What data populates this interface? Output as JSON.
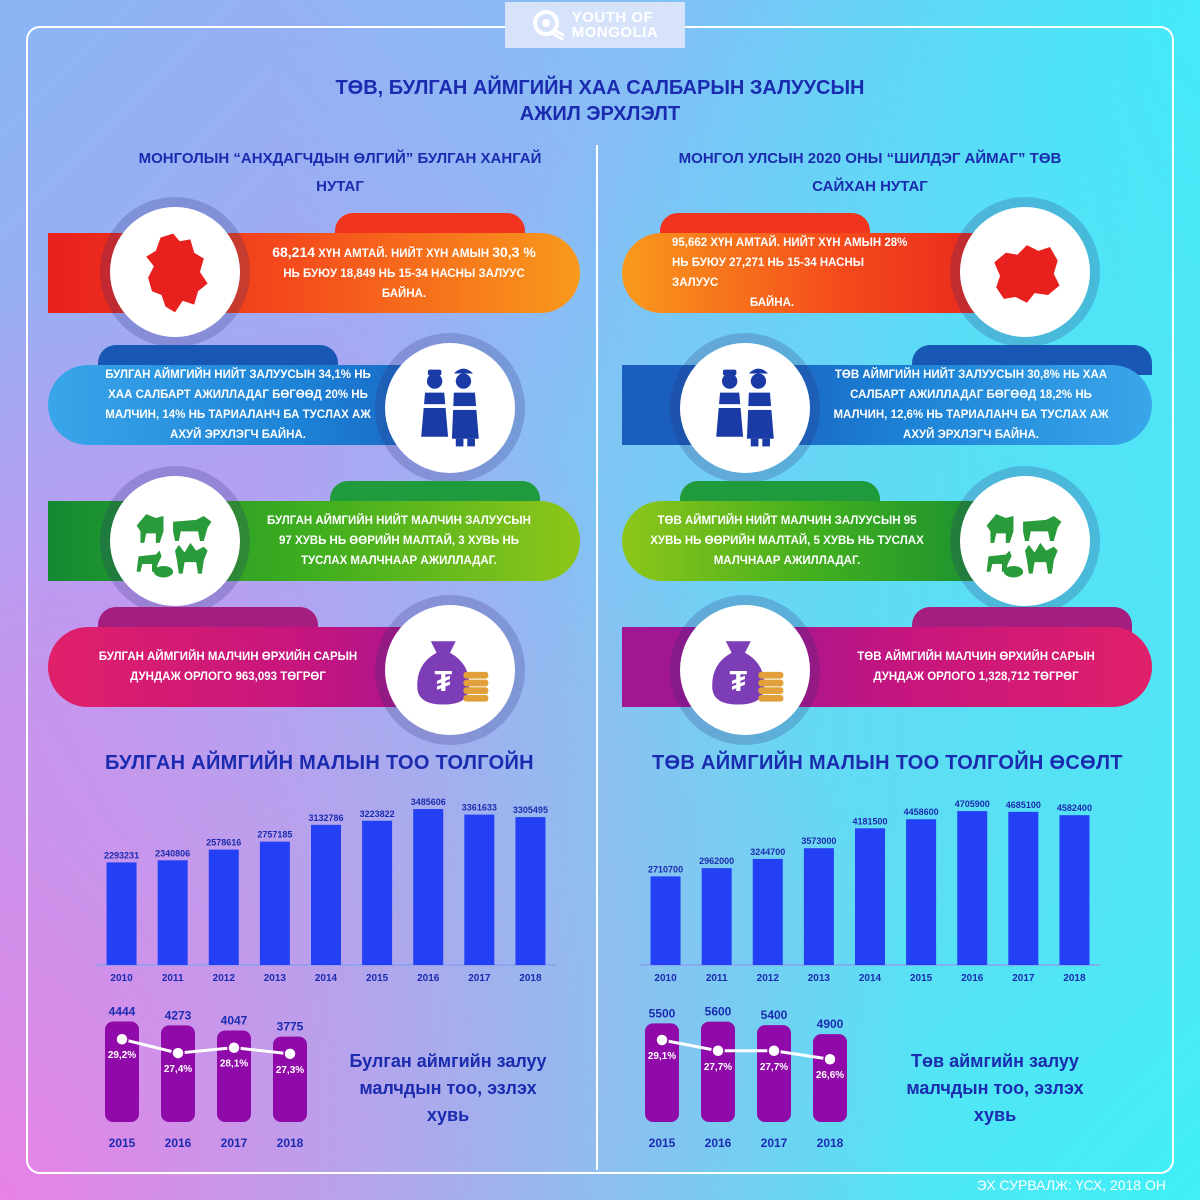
{
  "brand": {
    "line1": "YOUTH OF",
    "line2": "MONGOLIA"
  },
  "title": {
    "line1": "ТӨВ, БУЛГАН АЙМГИЙН ХАА САЛБАРЫН ЗАЛУУСЫН",
    "line2": "АЖИЛ ЭРХЛЭЛТ"
  },
  "left": {
    "heading": {
      "line1": "МОНГОЛЫН “АНХДАГЧДЫН ӨЛГИЙ” БУЛГАН ХАНГАЙ",
      "line2": "НУТАГ"
    },
    "population": {
      "t1a": "68,214",
      "t1b": " ХҮН АМТАЙ. НИЙТ ХҮН АМЫН ",
      "t1c": "30,3 %",
      "t2": "НЬ БУЮУ 18,849 НЬ 15-34 НАСНЫ ЗАЛУУС",
      "t3": "БАЙНА."
    },
    "employment": {
      "t1": "БУЛГАН АЙМГИЙН НИЙТ ЗАЛУУСЫН 34,1% НЬ",
      "t2": "ХАА САЛБАРТ АЖИЛЛАДАГ БӨГӨӨД 20% НЬ",
      "t3": "МАЛЧИН, 14% НЬ ТАРИАЛАНЧ БА ТУСЛАХ АЖ",
      "t4": "АХУЙ ЭРХЛЭГЧ БАЙНА."
    },
    "herders": {
      "t1": "БУЛГАН АЙМГИЙН НИЙТ МАЛЧИН ЗАЛУУСЫН",
      "t2": "97 ХУВЬ НЬ ӨӨРИЙН МАЛТАЙ, 3 ХУВЬ НЬ",
      "t3": "ТУСЛАХ МАЛЧНААР АЖИЛЛАДАГ."
    },
    "income": {
      "t1": "БУЛГАН АЙМГИЙН МАЛЧИН ӨРХИЙН САРЫН",
      "t2": "ДУНДАЖ ОРЛОГО 963,093 ТӨГРӨГ"
    },
    "livestock_title": "БУЛГАН АЙМГИЙН МАЛЫН ТОО ТОЛГОЙН",
    "youth_caption": {
      "line1": "Булган аймгийн залуу",
      "line2": "малчдын тоо, эзлэх",
      "line3": "хувь"
    }
  },
  "right": {
    "heading": {
      "line1": "МОНГОЛ УЛСЫН 2020 ОНЫ “ШИЛДЭГ АЙМАГ” ТӨВ",
      "line2": "САЙХАН НУТАГ"
    },
    "population": {
      "t1": "95,662 ХҮН АМТАЙ. НИЙТ ХҮН АМЫН 28%",
      "t2": "НЬ БУЮУ 27,271 НЬ 15-34 НАСНЫ ЗАЛУУС",
      "t3": "БАЙНА."
    },
    "employment": {
      "t1": "ТӨВ АЙМГИЙН НИЙТ ЗАЛУУСЫН 30,8% НЬ ХАА",
      "t2": "САЛБАРТ АЖИЛЛАДАГ БӨГӨӨД 18,2% НЬ",
      "t3": "МАЛЧИН, 12,6% НЬ ТАРИАЛАНЧ БА ТУСЛАХ АЖ",
      "t4": "АХУЙ ЭРХЛЭГЧ БАЙНА."
    },
    "herders": {
      "t1": "ТӨВ АЙМГИЙН НИЙТ МАЛЧИН ЗАЛУУСЫН 95",
      "t2": "ХУВЬ НЬ ӨӨРИЙН МАЛТАЙ, 5 ХУВЬ НЬ ТУСЛАХ",
      "t3": "МАЛЧНААР АЖИЛЛАДАГ."
    },
    "income": {
      "t1": "ТӨВ АЙМГИЙН МАЛЧИН ӨРХИЙН САРЫН",
      "t2": "ДУНДАЖ ОРЛОГО 1,328,712 ТӨГРӨГ"
    },
    "livestock_title": "ТӨВ АЙМГИЙН МАЛЫН ТОО ТОЛГОЙН ӨСӨЛТ",
    "youth_caption": {
      "line1": "Төв аймгийн залуу",
      "line2": "малчдын тоо, эзлэх",
      "line3": "хувь"
    }
  },
  "source": "ЭХ СУРВАЛЖ: ҮСХ, 2018 ОН",
  "colors": {
    "orange": "#f6901e",
    "red": "#ec2a2a",
    "blue": "#1f8fd8",
    "green": "#4cb51b",
    "magenta": "#d0137a",
    "purple": "#7c3db6",
    "bar_blue": "#2340f5",
    "bar_purple": "#8f0aa8",
    "title_blue": "#1b2bb0"
  },
  "icons": [
    "bulgan-map-icon",
    "tov-map-icon",
    "herder-couple-icon",
    "livestock-icon",
    "money-bag-icon"
  ],
  "chart_data": [
    {
      "type": "bar",
      "title": "БУЛГАН АЙМГИЙН МАЛЫН ТОО ТОЛГОЙН",
      "categories": [
        "2010",
        "2011",
        "2012",
        "2013",
        "2014",
        "2015",
        "2016",
        "2017",
        "2018"
      ],
      "values": [
        2293231,
        2340806,
        2578616,
        2757185,
        3132786,
        3223822,
        3485606,
        3361633,
        3305495
      ],
      "labels": [
        "2293231",
        "2340806",
        "2578616",
        "2757185",
        "3132786",
        "3223822",
        "3485606",
        "3361633",
        "3305495"
      ],
      "ylim": [
        0,
        3800000
      ],
      "grid": false
    },
    {
      "type": "bar",
      "title": "ТӨВ АЙМГИЙН МАЛЫН ТОО ТОЛГОЙН ӨСӨЛТ",
      "categories": [
        "2010",
        "2011",
        "2012",
        "2013",
        "2014",
        "2015",
        "2016",
        "2017",
        "2018"
      ],
      "values": [
        2710700,
        2962000,
        3244700,
        3573000,
        4181500,
        4458600,
        4705900,
        4685100,
        4582400
      ],
      "labels": [
        "2710700",
        "2962000",
        "3244700",
        "3573000",
        "4181500",
        "4458600",
        "4705900",
        "4685100",
        "4582400"
      ],
      "ylim": [
        0,
        5200000
      ],
      "grid": false
    },
    {
      "type": "bar",
      "title": "Булган аймгийн залуу малчдын тоо, эзлэх хувь",
      "categories": [
        "2015",
        "2016",
        "2017",
        "2018"
      ],
      "series": [
        {
          "values": [
            4444,
            4273,
            4047,
            3775
          ],
          "labels": [
            "4444",
            "4273",
            "4047",
            "3775"
          ]
        },
        {
          "type": "line",
          "values": [
            29.2,
            27.4,
            28.1,
            27.3
          ],
          "labels": [
            "29,2%",
            "27,4%",
            "28,1%",
            "27,3%"
          ]
        }
      ],
      "ylim": [
        0,
        4600
      ],
      "line_ylim": [
        20,
        33
      ]
    },
    {
      "type": "bar",
      "title": "Төв аймгийн залуу малчдын тоо, эзлэх хувь",
      "categories": [
        "2015",
        "2016",
        "2017",
        "2018"
      ],
      "series": [
        {
          "values": [
            5500,
            5600,
            5400,
            4900
          ],
          "labels": [
            "5500",
            "5600",
            "5400",
            "4900"
          ]
        },
        {
          "type": "line",
          "values": [
            29.1,
            27.7,
            27.7,
            26.6
          ],
          "labels": [
            "29,1%",
            "27,7%",
            "27,7%",
            "26,6%"
          ]
        }
      ],
      "ylim": [
        0,
        5800
      ],
      "line_ylim": [
        20,
        33
      ]
    }
  ]
}
